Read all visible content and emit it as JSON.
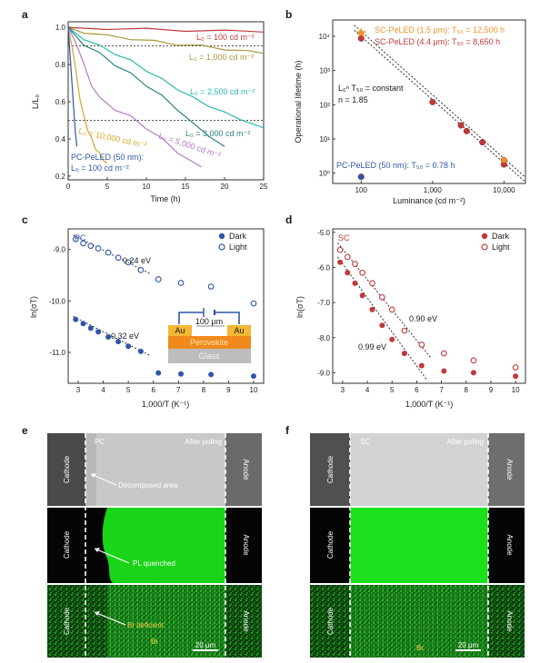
{
  "panel_letters": {
    "a": "a",
    "b": "b",
    "c": "c",
    "d": "d",
    "e": "e",
    "f": "f"
  },
  "colors": {
    "red": "#c0393b",
    "olive": "#a8953a",
    "teal": "#2bb7b0",
    "darkteal": "#2b7f80",
    "purple": "#b57cc7",
    "gold": "#d9a52b",
    "blue": "#2f56a8",
    "orange": "#f0932b",
    "green": "#19d419"
  },
  "chart_data": [
    {
      "id": "a",
      "type": "line",
      "xlabel": "Time (h)",
      "ylabel": "L/L₀",
      "xlim": [
        0,
        25
      ],
      "ylim": [
        0.18,
        1.03
      ],
      "xticks": [
        0,
        5,
        10,
        15,
        20,
        25
      ],
      "yticks": [
        0.2,
        0.4,
        0.6,
        0.8,
        1.0
      ],
      "xtick_labels": [
        "0",
        "5",
        "10",
        "15",
        "20",
        "25"
      ],
      "ytick_labels": [
        "0.2",
        "0.4",
        "0.6",
        "0.8",
        "1.0"
      ],
      "reference_lines": [
        0.9,
        0.5
      ],
      "series": [
        {
          "name": "L₀ = 100 cd m⁻²",
          "color_key": "red",
          "x": [
            0,
            5,
            10,
            15,
            20,
            25
          ],
          "y": [
            1.0,
            0.995,
            0.99,
            0.985,
            0.98,
            0.975
          ]
        },
        {
          "name": "L₀ = 1,000 cd m⁻²",
          "color_key": "olive",
          "x": [
            0,
            2,
            5,
            8,
            11,
            14,
            17,
            20,
            23,
            25
          ],
          "y": [
            1.0,
            0.975,
            0.955,
            0.94,
            0.925,
            0.91,
            0.9,
            0.885,
            0.87,
            0.86
          ]
        },
        {
          "name": "L₀ = 2,500 cd m⁻²",
          "color_key": "teal",
          "x": [
            0,
            2,
            4,
            6,
            8,
            10,
            12,
            14,
            16,
            18,
            20,
            22,
            25
          ],
          "y": [
            1.0,
            0.94,
            0.9,
            0.86,
            0.82,
            0.77,
            0.72,
            0.67,
            0.62,
            0.58,
            0.54,
            0.51,
            0.46
          ]
        },
        {
          "name": "L₀ = 3,000 cd m⁻²",
          "color_key": "darkteal",
          "x": [
            0,
            2,
            4,
            6,
            8,
            10,
            12,
            14,
            16,
            18,
            20
          ],
          "y": [
            1.0,
            0.91,
            0.86,
            0.8,
            0.75,
            0.69,
            0.63,
            0.56,
            0.48,
            0.42,
            0.36
          ]
        },
        {
          "name": "L₀ = 5,000 cd m⁻²",
          "color_key": "purple",
          "x": [
            0,
            1,
            2,
            3,
            4,
            6,
            8,
            10,
            12,
            14,
            16,
            17
          ],
          "y": [
            1.0,
            0.92,
            0.8,
            0.69,
            0.62,
            0.56,
            0.52,
            0.46,
            0.4,
            0.33,
            0.27,
            0.25
          ]
        },
        {
          "name": "L₀ = 10,000 cd m⁻²",
          "color_key": "gold",
          "x": [
            0,
            0.5,
            1,
            1.5,
            2,
            2.5,
            3,
            3.5,
            4,
            4.5,
            5
          ],
          "y": [
            1.0,
            0.9,
            0.76,
            0.62,
            0.52,
            0.45,
            0.4,
            0.35,
            0.32,
            0.29,
            0.27
          ]
        },
        {
          "name": "PC-PeLED (50 nm): L₀ = 100 cd m⁻²",
          "color_key": "blue",
          "x": [
            0,
            0.3,
            0.6,
            0.9,
            1.1
          ],
          "y": [
            1.0,
            0.82,
            0.62,
            0.45,
            0.36
          ]
        }
      ]
    },
    {
      "id": "b",
      "type": "scatter",
      "xlabel": "Luminance (cd m⁻²)",
      "ylabel": "Operational lifetime (h)",
      "xscale": "log",
      "yscale": "log",
      "xlim": [
        40,
        20000
      ],
      "ylim": [
        0.5,
        30000
      ],
      "xticks": [
        100,
        1000,
        10000
      ],
      "yticks": [
        1,
        10,
        100,
        1000,
        10000
      ],
      "xtick_labels": [
        "100",
        "1,000",
        "10,000"
      ],
      "ytick_labels": [
        "10⁰",
        "10¹",
        "10²",
        "10³",
        "10⁴"
      ],
      "annotation_formula": "L₀ⁿ T₅₀ = constant",
      "annotation_n": "n = 1.85",
      "legend_sc15": "SC-PeLED (1.5 μm): T₅₀ = 12,500 h",
      "legend_sc44": "SC-PeLED (4.4 μm): T₅₀ = 8,650 h",
      "legend_pc": "PC-PeLED (50 nm): T₅₀ = 0.78 h",
      "points": [
        {
          "x": 100,
          "y": 8650,
          "color_key": "red"
        },
        {
          "x": 1000,
          "y": 120,
          "color_key": "red"
        },
        {
          "x": 2500,
          "y": 25,
          "color_key": "red"
        },
        {
          "x": 3000,
          "y": 17,
          "color_key": "red"
        },
        {
          "x": 5000,
          "y": 8,
          "color_key": "red"
        },
        {
          "x": 10000,
          "y": 1.8,
          "color_key": "red"
        },
        {
          "x": 10000,
          "y": 2.4,
          "color_key": "orange"
        },
        {
          "x": 100,
          "y": 0.78,
          "color_key": "blue"
        }
      ],
      "star": {
        "x": 100,
        "y": 12500,
        "color_key": "orange"
      },
      "fit_lines": [
        {
          "x": [
            80,
            20000
          ],
          "y": [
            21000,
            0.75
          ]
        },
        {
          "x": [
            80,
            20000
          ],
          "y": [
            15000,
            0.55
          ]
        }
      ]
    },
    {
      "id": "c",
      "type": "scatter",
      "panel_tag": "PC",
      "xlabel": "1,000/T (K⁻¹)",
      "ylabel": "ln(σT)",
      "xlim": [
        2.6,
        10.4
      ],
      "ylim": [
        -11.6,
        -8.6
      ],
      "xticks": [
        3,
        4,
        5,
        6,
        7,
        8,
        9,
        10
      ],
      "yticks": [
        -9.0,
        -10.0,
        -11.0
      ],
      "xtick_labels": [
        "3",
        "4",
        "5",
        "6",
        "7",
        "8",
        "9",
        "10"
      ],
      "ytick_labels": [
        "-9.0",
        "-10.0",
        "-11.0"
      ],
      "legend": [
        "Dark",
        "Light"
      ],
      "color_key": "blue",
      "dark": {
        "x": [
          2.9,
          3.2,
          3.5,
          3.8,
          4.2,
          4.6,
          5.0,
          5.5,
          6.2,
          7.1,
          8.3,
          10.0
        ],
        "y": [
          -10.36,
          -10.44,
          -10.53,
          -10.6,
          -10.7,
          -10.79,
          -10.88,
          -10.98,
          -11.4,
          -11.42,
          -11.43,
          -11.46
        ]
      },
      "light": {
        "x": [
          2.9,
          3.2,
          3.5,
          3.8,
          4.2,
          4.6,
          5.0,
          5.5,
          6.2,
          7.1,
          8.3,
          10.0
        ],
        "y": [
          -8.8,
          -8.88,
          -8.93,
          -8.98,
          -9.06,
          -9.16,
          -9.25,
          -9.4,
          -9.58,
          -9.65,
          -9.72,
          -10.05
        ]
      },
      "fit_dark": {
        "x": [
          2.8,
          5.9
        ],
        "y": [
          -10.3,
          -11.07
        ]
      },
      "fit_light": {
        "x": [
          2.8,
          5.9
        ],
        "y": [
          -8.72,
          -9.48
        ]
      },
      "label_dark": "0.32 eV",
      "label_light": "0.24 eV",
      "inset": {
        "scale": "100 μm",
        "electrode_left": "Au",
        "electrode_right": "Au",
        "layer": "Perovskite",
        "substrate": "Glass"
      }
    },
    {
      "id": "d",
      "type": "scatter",
      "panel_tag": "SC",
      "xlabel": "1,000/T (K⁻¹)",
      "ylabel": "ln(σT)",
      "xlim": [
        2.6,
        10.4
      ],
      "ylim": [
        -9.3,
        -4.9
      ],
      "xticks": [
        3,
        4,
        5,
        6,
        7,
        8,
        9,
        10
      ],
      "yticks": [
        -5.0,
        -6.0,
        -7.0,
        -8.0,
        -9.0
      ],
      "xtick_labels": [
        "3",
        "4",
        "5",
        "6",
        "7",
        "8",
        "9",
        "10"
      ],
      "ytick_labels": [
        "-5.0",
        "-6.0",
        "-7.0",
        "-8.0",
        "-9.0"
      ],
      "legend": [
        "Dark",
        "Light"
      ],
      "color_key": "red",
      "dark": {
        "x": [
          2.9,
          3.2,
          3.5,
          3.8,
          4.2,
          4.6,
          5.0,
          5.5,
          6.2,
          7.1,
          8.3,
          10.0
        ],
        "y": [
          -5.85,
          -6.15,
          -6.45,
          -6.8,
          -7.2,
          -7.65,
          -8.05,
          -8.45,
          -8.8,
          -8.95,
          -9.0,
          -9.1
        ]
      },
      "light": {
        "x": [
          2.9,
          3.2,
          3.5,
          3.8,
          4.2,
          4.6,
          5.0,
          5.5,
          6.2,
          7.1,
          8.3,
          10.0
        ],
        "y": [
          -5.5,
          -5.7,
          -5.9,
          -6.15,
          -6.45,
          -6.85,
          -7.2,
          -7.8,
          -8.2,
          -8.45,
          -8.65,
          -8.85
        ]
      },
      "fit_dark": {
        "x": [
          2.8,
          6.4
        ],
        "y": [
          -5.7,
          -9.2
        ]
      },
      "fit_light": {
        "x": [
          2.8,
          6.6
        ],
        "y": [
          -5.3,
          -8.6
        ]
      },
      "label_dark": "0.99 eV",
      "label_light": "0.90 eV"
    }
  ],
  "micrographs": {
    "e": {
      "tag": "PC",
      "after": "After poling",
      "left": "Cathode",
      "right": "Anode",
      "ann_row1": "Decomposed area",
      "ann_row2": "PL quenched",
      "ann_row3": "Br deficient",
      "br": "Br",
      "scale": "20 μm"
    },
    "f": {
      "tag": "SC",
      "after": "After poling",
      "left": "Cathode",
      "right": "Anode",
      "br": "Br",
      "scale": "20 μm"
    }
  },
  "panel_a_labels": {
    "l100": "L₀ = 100 cd m⁻²",
    "l1000": "L₀ = 1,000 cd m⁻²",
    "l2500": "L₀ = 2,500 cd m⁻²",
    "l3000": "L₀ = 3,000 cd m⁻²",
    "l5000": "L₀ = 5,000 cd m⁻²",
    "l10000": "L₀ = 10,000 cd m⁻²",
    "pc1": "PC-PeLED (50 nm):",
    "pc2": "L₀ = 100 cd m⁻²"
  }
}
